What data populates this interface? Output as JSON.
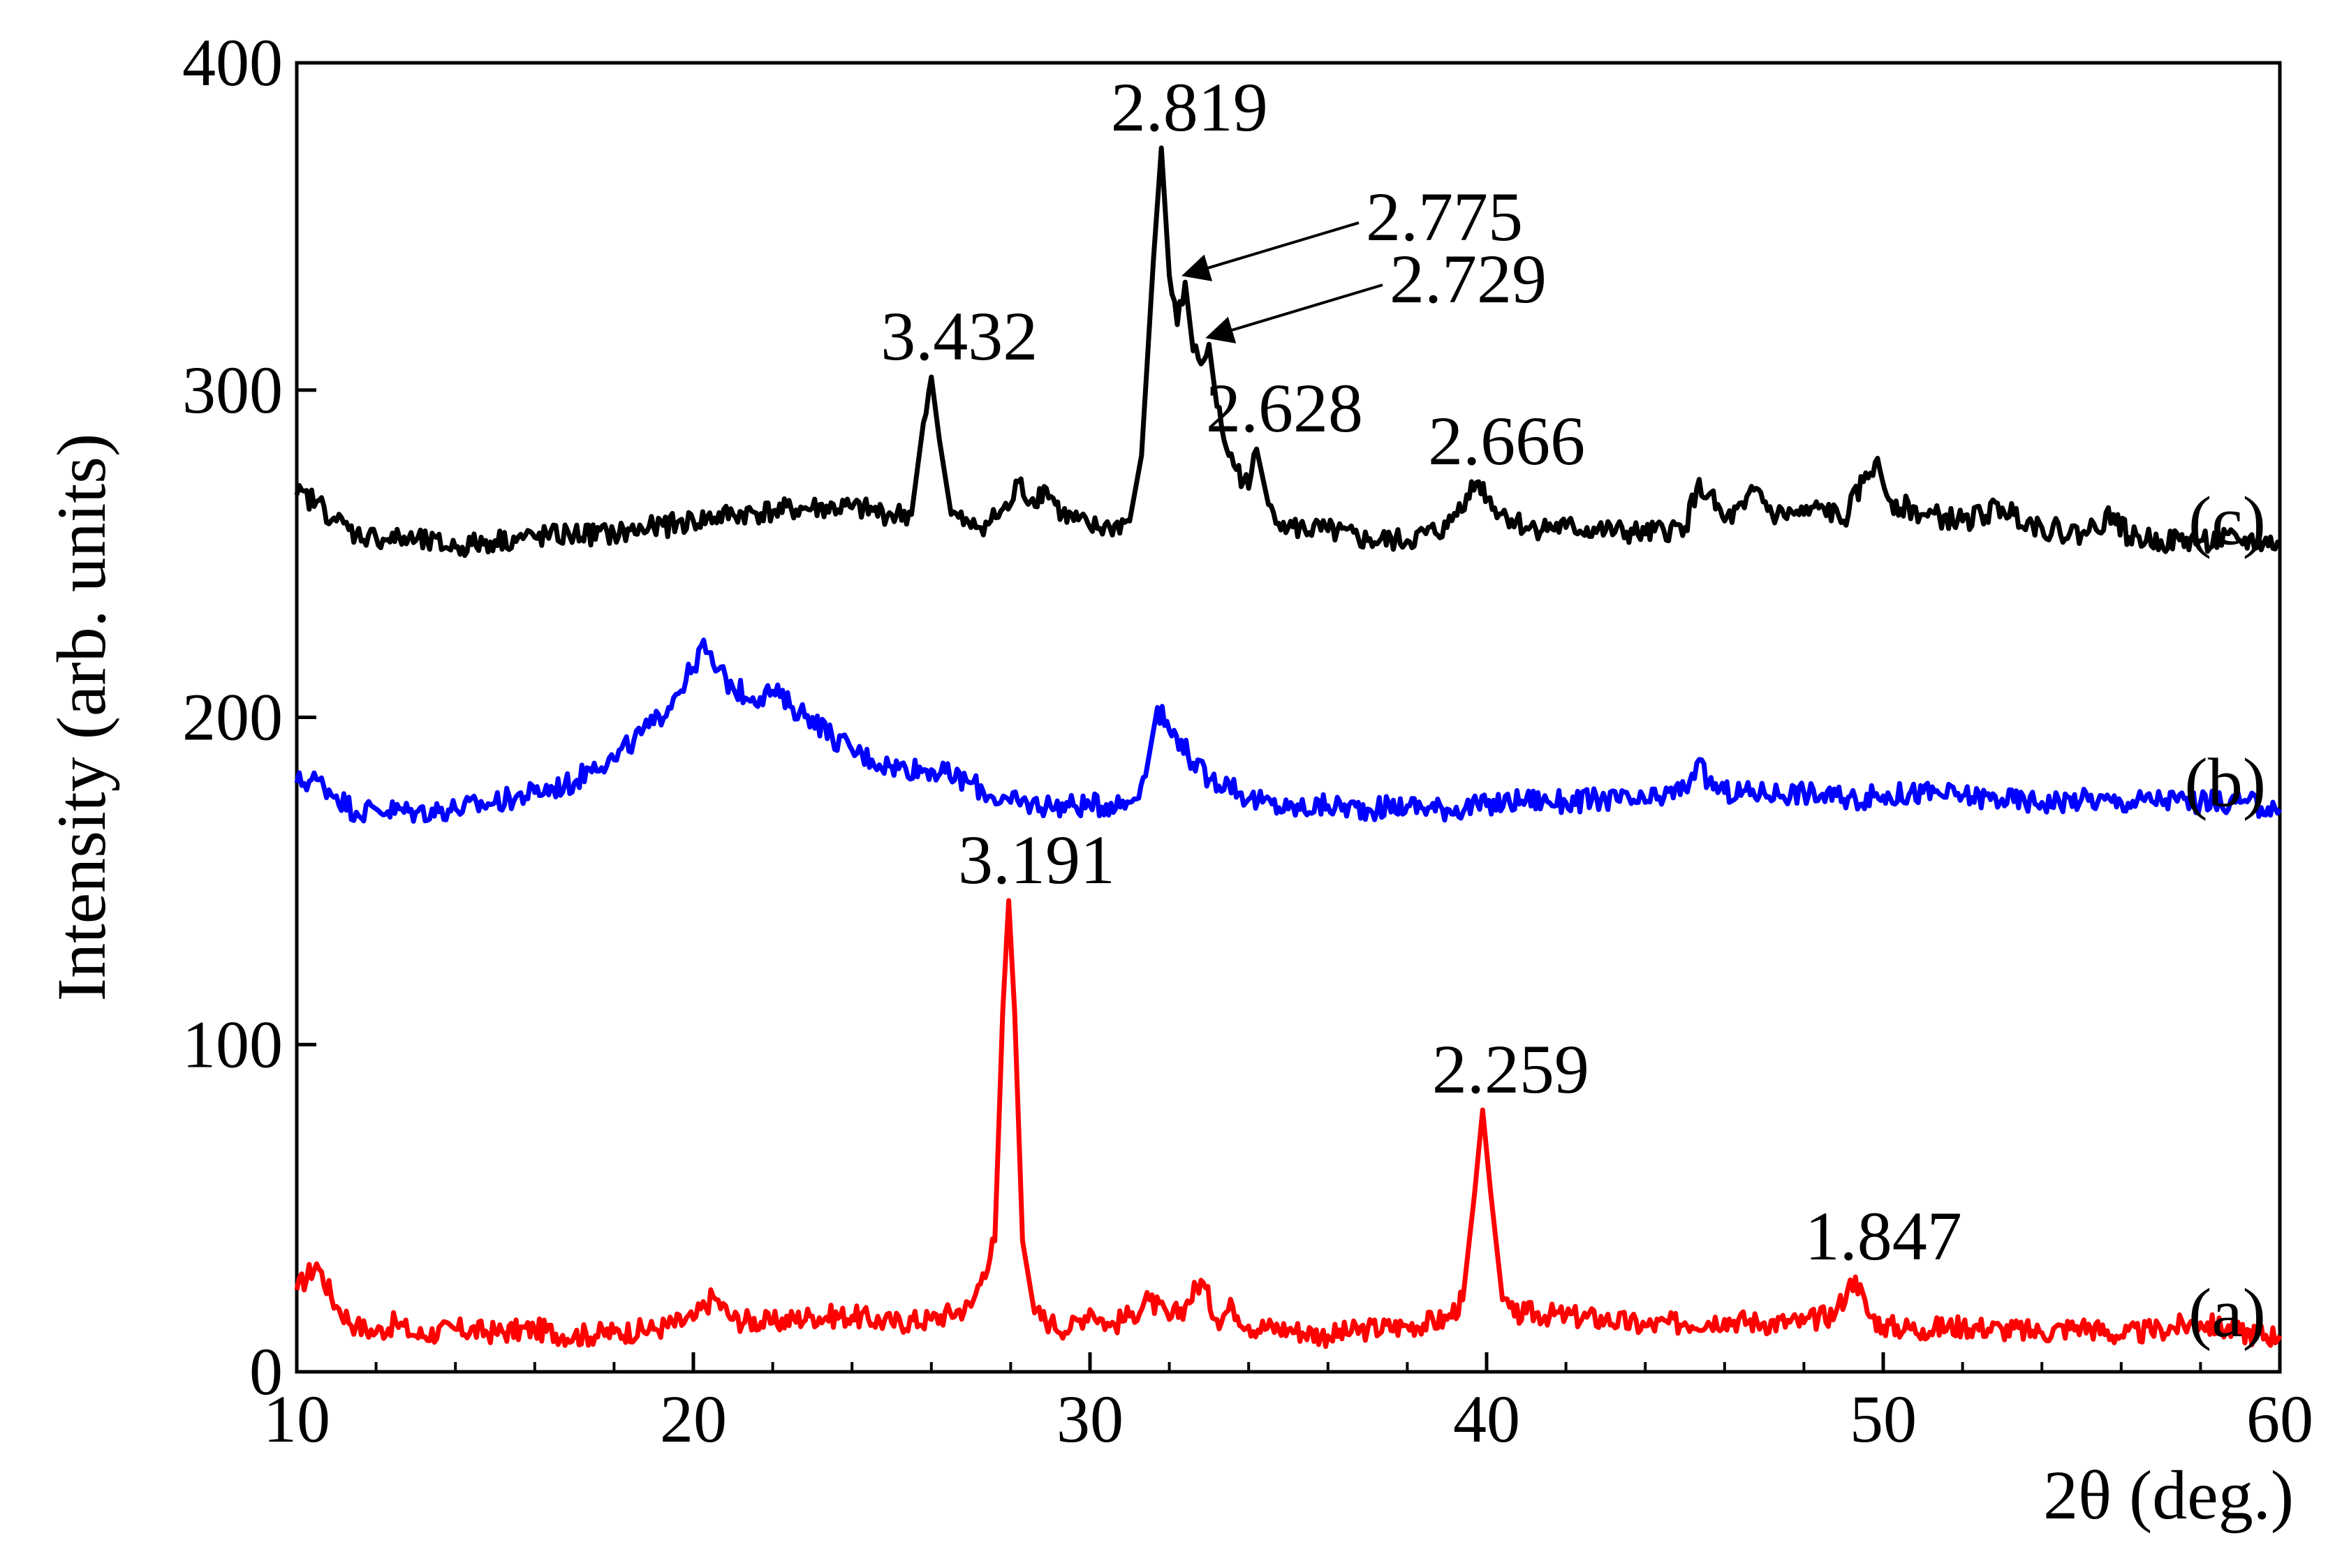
{
  "chart_data": {
    "type": "line",
    "title": "",
    "xlabel": "2θ (deg.)",
    "ylabel": "Intensity (arb. units)",
    "xlim": [
      10,
      60
    ],
    "ylim": [
      0,
      400
    ],
    "xticks": [
      10,
      20,
      30,
      40,
      50,
      60
    ],
    "yticks": [
      0,
      100,
      200,
      300,
      400
    ],
    "grid": false,
    "legend": "none",
    "series": [
      {
        "name": "(a)",
        "color": "#ff0000",
        "baseline": 13,
        "points": [
          [
            10,
            25
          ],
          [
            10.5,
            33
          ],
          [
            11,
            20
          ],
          [
            11.5,
            14
          ],
          [
            12,
            12
          ],
          [
            12.5,
            15
          ],
          [
            13,
            11
          ],
          [
            14,
            13
          ],
          [
            15,
            12
          ],
          [
            16,
            13
          ],
          [
            17,
            11
          ],
          [
            18,
            12
          ],
          [
            19,
            13
          ],
          [
            20,
            16
          ],
          [
            20.5,
            23
          ],
          [
            21,
            16
          ],
          [
            22,
            15
          ],
          [
            23,
            17
          ],
          [
            24,
            17
          ],
          [
            25,
            15
          ],
          [
            26,
            16
          ],
          [
            27,
            20
          ],
          [
            27.3,
            30
          ],
          [
            27.6,
            40
          ],
          [
            27.8,
            110
          ],
          [
            27.95,
            144
          ],
          [
            28.1,
            110
          ],
          [
            28.3,
            40
          ],
          [
            28.6,
            18
          ],
          [
            29,
            15
          ],
          [
            29.5,
            13
          ],
          [
            30,
            19
          ],
          [
            30.5,
            14
          ],
          [
            31,
            17
          ],
          [
            31.5,
            22
          ],
          [
            32,
            16
          ],
          [
            32.4,
            20
          ],
          [
            32.8,
            28
          ],
          [
            33.2,
            16
          ],
          [
            33.6,
            20
          ],
          [
            34,
            14
          ],
          [
            35,
            13
          ],
          [
            36,
            11
          ],
          [
            37,
            13
          ],
          [
            38,
            14
          ],
          [
            39,
            16
          ],
          [
            39.4,
            22
          ],
          [
            39.7,
            55
          ],
          [
            39.9,
            80
          ],
          [
            40.1,
            55
          ],
          [
            40.4,
            22
          ],
          [
            40.7,
            17
          ],
          [
            41,
            18
          ],
          [
            42,
            17
          ],
          [
            43,
            16
          ],
          [
            44,
            14
          ],
          [
            45,
            15
          ],
          [
            46,
            16
          ],
          [
            47,
            15
          ],
          [
            48,
            15
          ],
          [
            48.8,
            18
          ],
          [
            49.1,
            25
          ],
          [
            49.3,
            29
          ],
          [
            49.6,
            18
          ],
          [
            50,
            14
          ],
          [
            51,
            13
          ],
          [
            52,
            14
          ],
          [
            53,
            13
          ],
          [
            54,
            12
          ],
          [
            55,
            14
          ],
          [
            56,
            11
          ],
          [
            57,
            13
          ],
          [
            58,
            15
          ],
          [
            59,
            12
          ],
          [
            60,
            11
          ]
        ]
      },
      {
        "name": "(b)",
        "color": "#0000ff",
        "baseline": 175,
        "points": [
          [
            10,
            180
          ],
          [
            10.5,
            181
          ],
          [
            11,
            176
          ],
          [
            11.5,
            171
          ],
          [
            12,
            172
          ],
          [
            13,
            171
          ],
          [
            14,
            172
          ],
          [
            15,
            174
          ],
          [
            16,
            177
          ],
          [
            17,
            180
          ],
          [
            17.5,
            186
          ],
          [
            18,
            187
          ],
          [
            18.5,
            193
          ],
          [
            19,
            198
          ],
          [
            19.5,
            206
          ],
          [
            20,
            215
          ],
          [
            20.2,
            222
          ],
          [
            20.5,
            216
          ],
          [
            21,
            209
          ],
          [
            21.5,
            206
          ],
          [
            22,
            208
          ],
          [
            22.5,
            203
          ],
          [
            23,
            200
          ],
          [
            23.5,
            194
          ],
          [
            24,
            190
          ],
          [
            24.5,
            187
          ],
          [
            25,
            185
          ],
          [
            26,
            184
          ],
          [
            27,
            180
          ],
          [
            27.5,
            176
          ],
          [
            28,
            174
          ],
          [
            29,
            173
          ],
          [
            30,
            173
          ],
          [
            31,
            174
          ],
          [
            31.4,
            182
          ],
          [
            31.7,
            203
          ],
          [
            32,
            196
          ],
          [
            32.3,
            193
          ],
          [
            32.6,
            186
          ],
          [
            33,
            181
          ],
          [
            33.5,
            180
          ],
          [
            34,
            175
          ],
          [
            35,
            172
          ],
          [
            36,
            173
          ],
          [
            37,
            172
          ],
          [
            38,
            173
          ],
          [
            39,
            172
          ],
          [
            40,
            173
          ],
          [
            41,
            175
          ],
          [
            42,
            174
          ],
          [
            43,
            175
          ],
          [
            44,
            174
          ],
          [
            45,
            178
          ],
          [
            45.3,
            186
          ],
          [
            45.6,
            180
          ],
          [
            46,
            177
          ],
          [
            47,
            177
          ],
          [
            48,
            177
          ],
          [
            49,
            175
          ],
          [
            50,
            176
          ],
          [
            51,
            177
          ],
          [
            52,
            176
          ],
          [
            53,
            175
          ],
          [
            54,
            174
          ],
          [
            55,
            175
          ],
          [
            56,
            174
          ],
          [
            57,
            175
          ],
          [
            58,
            174
          ],
          [
            59,
            174
          ],
          [
            60,
            172
          ]
        ]
      },
      {
        "name": "(c)",
        "color": "#000000",
        "baseline": 255,
        "points": [
          [
            10,
            268
          ],
          [
            10.5,
            266
          ],
          [
            11,
            260
          ],
          [
            11.5,
            256
          ],
          [
            12,
            255
          ],
          [
            13,
            254
          ],
          [
            14,
            252
          ],
          [
            15,
            254
          ],
          [
            16,
            255
          ],
          [
            17,
            256
          ],
          [
            18,
            256
          ],
          [
            19,
            258
          ],
          [
            20,
            260
          ],
          [
            21,
            262
          ],
          [
            22,
            263
          ],
          [
            23,
            264
          ],
          [
            24,
            264
          ],
          [
            25,
            262
          ],
          [
            25.5,
            262
          ],
          [
            25.8,
            290
          ],
          [
            26,
            304
          ],
          [
            26.2,
            285
          ],
          [
            26.5,
            262
          ],
          [
            27,
            258
          ],
          [
            27.5,
            260
          ],
          [
            28,
            265
          ],
          [
            28.2,
            272
          ],
          [
            28.5,
            266
          ],
          [
            28.9,
            270
          ],
          [
            29.3,
            262
          ],
          [
            30,
            258
          ],
          [
            30.5,
            258
          ],
          [
            31,
            260
          ],
          [
            31.3,
            280
          ],
          [
            31.6,
            340
          ],
          [
            31.8,
            374
          ],
          [
            32,
            335
          ],
          [
            32.2,
            320
          ],
          [
            32.4,
            333
          ],
          [
            32.6,
            312
          ],
          [
            32.8,
            308
          ],
          [
            33,
            314
          ],
          [
            33.2,
            295
          ],
          [
            33.5,
            280
          ],
          [
            34,
            270
          ],
          [
            34.2,
            282
          ],
          [
            34.5,
            265
          ],
          [
            35,
            258
          ],
          [
            36,
            257
          ],
          [
            37,
            254
          ],
          [
            38,
            254
          ],
          [
            39,
            258
          ],
          [
            39.5,
            268
          ],
          [
            39.8,
            272
          ],
          [
            40.2,
            264
          ],
          [
            41,
            258
          ],
          [
            42,
            258
          ],
          [
            43,
            257
          ],
          [
            44,
            256
          ],
          [
            45,
            258
          ],
          [
            45.3,
            270
          ],
          [
            45.6,
            268
          ],
          [
            46,
            260
          ],
          [
            46.5,
            264
          ],
          [
            46.8,
            270
          ],
          [
            47.2,
            262
          ],
          [
            48,
            262
          ],
          [
            48.5,
            264
          ],
          [
            49,
            260
          ],
          [
            49.5,
            272
          ],
          [
            49.8,
            278
          ],
          [
            50.2,
            266
          ],
          [
            51,
            262
          ],
          [
            52,
            260
          ],
          [
            53,
            264
          ],
          [
            54,
            258
          ],
          [
            55,
            256
          ],
          [
            55.8,
            262
          ],
          [
            56.2,
            255
          ],
          [
            57,
            254
          ],
          [
            58,
            254
          ],
          [
            59,
            254
          ],
          [
            60,
            253
          ]
        ]
      }
    ],
    "annotations": [
      {
        "text": "3.191",
        "x": 27.95,
        "y": 144,
        "arrow": false
      },
      {
        "text": "2.259",
        "x": 39.9,
        "y": 80,
        "arrow": false
      },
      {
        "text": "1.847",
        "x": 49.3,
        "y": 29,
        "arrow": false
      },
      {
        "text": "3.432",
        "x": 26.0,
        "y": 304,
        "arrow": false
      },
      {
        "text": "2.819",
        "x": 31.8,
        "y": 374,
        "arrow": false
      },
      {
        "text": "2.775",
        "x": 32.2,
        "y": 333,
        "arrow": true
      },
      {
        "text": "2.729",
        "x": 32.8,
        "y": 314,
        "arrow": true
      },
      {
        "text": "2.628",
        "x": 34.2,
        "y": 282,
        "arrow": false
      },
      {
        "text": "2.666",
        "x": 39.8,
        "y": 272,
        "arrow": false
      }
    ]
  }
}
